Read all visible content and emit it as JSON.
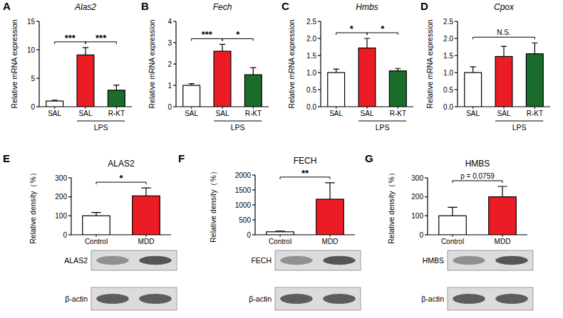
{
  "chart_data": [
    {
      "type": "bar",
      "panel": "A",
      "title": "Alas2",
      "y_label": "Relative mRNA expression",
      "categories": [
        "SAL",
        "SAL",
        "R-KT"
      ],
      "values": [
        1.0,
        9.1,
        2.9
      ],
      "errors": [
        0.15,
        1.3,
        0.9
      ],
      "colors": [
        "#ffffff",
        "#ec1c24",
        "#1b6b2a"
      ],
      "ylim": [
        0,
        15
      ],
      "yticks": [
        0,
        5,
        10,
        15
      ],
      "groups": [
        {
          "label": "LPS",
          "from": 1,
          "to": 2
        }
      ],
      "annotations": [
        {
          "text": "***",
          "from": 0,
          "to": 1
        },
        {
          "text": "***",
          "from": 1,
          "to": 2
        }
      ]
    },
    {
      "type": "bar",
      "panel": "B",
      "title": "Fech",
      "y_label": "Relative mRNA expression",
      "categories": [
        "SAL",
        "SAL",
        "R-KT"
      ],
      "values": [
        1.0,
        2.6,
        1.5
      ],
      "errors": [
        0.08,
        0.32,
        0.33
      ],
      "colors": [
        "#ffffff",
        "#ec1c24",
        "#1b6b2a"
      ],
      "ylim": [
        0,
        4
      ],
      "yticks": [
        0,
        1,
        2,
        3,
        4
      ],
      "groups": [
        {
          "label": "LPS",
          "from": 1,
          "to": 2
        }
      ],
      "annotations": [
        {
          "text": "***",
          "from": 0,
          "to": 1
        },
        {
          "text": "*",
          "from": 1,
          "to": 2
        }
      ]
    },
    {
      "type": "bar",
      "panel": "C",
      "title": "Hmbs",
      "y_label": "Relative mRNA expression",
      "categories": [
        "SAL",
        "SAL",
        "R-KT"
      ],
      "values": [
        1.0,
        1.72,
        1.05
      ],
      "errors": [
        0.1,
        0.28,
        0.07
      ],
      "colors": [
        "#ffffff",
        "#ec1c24",
        "#1b6b2a"
      ],
      "ylim": [
        0,
        2.5
      ],
      "yticks": [
        {
          "value": 0,
          "label": "0.0"
        },
        0.5,
        {
          "value": 1,
          "label": "1.0"
        },
        1.5,
        {
          "value": 2,
          "label": "2.0"
        },
        2.5
      ],
      "groups": [
        {
          "label": "LPS",
          "from": 1,
          "to": 2
        }
      ],
      "annotations": [
        {
          "text": "*",
          "from": 0,
          "to": 1
        },
        {
          "text": "*",
          "from": 1,
          "to": 2
        }
      ]
    },
    {
      "type": "bar",
      "panel": "D",
      "title": "Cpox",
      "y_label": "Relative mRNA expression",
      "categories": [
        "SAL",
        "SAL",
        "R-KT"
      ],
      "values": [
        1.0,
        1.47,
        1.55
      ],
      "errors": [
        0.17,
        0.3,
        0.32
      ],
      "colors": [
        "#ffffff",
        "#ec1c24",
        "#1b6b2a"
      ],
      "ylim": [
        0,
        2.5
      ],
      "yticks": [
        {
          "value": 0,
          "label": "0.0"
        },
        0.5,
        {
          "value": 1,
          "label": "1.0"
        },
        1.5,
        {
          "value": 2,
          "label": "2.0"
        },
        2.5
      ],
      "groups": [
        {
          "label": "LPS",
          "from": 1,
          "to": 2
        }
      ],
      "annotations": [
        {
          "text": "N.S.",
          "from": 0,
          "to": 2
        }
      ]
    },
    {
      "type": "bar",
      "panel": "E",
      "title": "ALAS2",
      "y_label": "Relative density（%）",
      "categories": [
        "Control",
        "MDD"
      ],
      "values": [
        100,
        205
      ],
      "errors": [
        18,
        42
      ],
      "colors": [
        "#ffffff",
        "#ec1c24"
      ],
      "ylim": [
        0,
        300
      ],
      "yticks": [
        0,
        100,
        200,
        300
      ],
      "annotations": [
        {
          "text": "*",
          "from": 0,
          "to": 1
        }
      ],
      "blot": [
        "ALAS2",
        "β-actin"
      ]
    },
    {
      "type": "bar",
      "panel": "F",
      "title": "FECH",
      "y_label": "Relative density（%）",
      "categories": [
        "Control",
        "MDD"
      ],
      "values": [
        100,
        1190
      ],
      "errors": [
        25,
        550
      ],
      "colors": [
        "#ffffff",
        "#ec1c24"
      ],
      "ylim": [
        0,
        2000
      ],
      "yticks": [
        0,
        500,
        1000,
        1500,
        2000
      ],
      "annotations": [
        {
          "text": "**",
          "from": 0,
          "to": 1
        }
      ],
      "blot": [
        "FECH",
        "β-actin"
      ]
    },
    {
      "type": "bar",
      "panel": "G",
      "title": "HMBS",
      "y_label": "Relative density（%）",
      "categories": [
        "Control",
        "MDD"
      ],
      "values": [
        100,
        200
      ],
      "errors": [
        45,
        55
      ],
      "colors": [
        "#ffffff",
        "#ec1c24"
      ],
      "ylim": [
        0,
        300
      ],
      "yticks": [
        0,
        100,
        200,
        300
      ],
      "annotations": [
        {
          "text": "p = 0.0759",
          "from": 0,
          "to": 1
        }
      ],
      "blot": [
        "HMBS",
        "β-actin"
      ]
    }
  ]
}
